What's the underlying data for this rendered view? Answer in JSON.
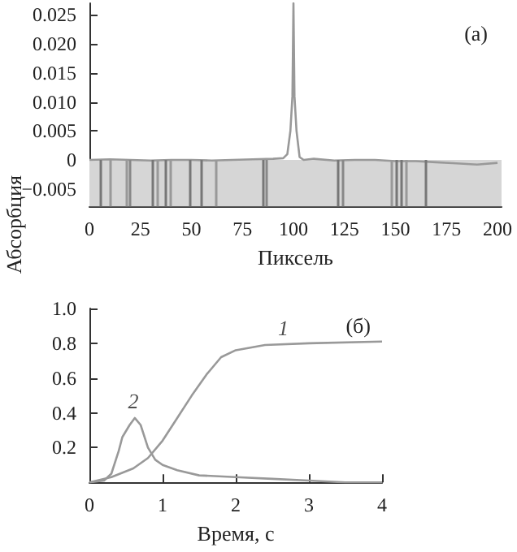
{
  "chart_data": [
    {
      "type": "line",
      "xlabel": "Пиксель",
      "bands": [
        {
          "axis": "y",
          "from": -0.008,
          "to": 0,
          "color": "#d6d6d6"
        }
      ],
      "ylabel": "Абсорбция",
      "annotations": [
        "(a)"
      ],
      "xlim": [
        0,
        202
      ],
      "ylim": [
        -0.008,
        0.027
      ],
      "xticks": [
        0,
        25,
        50,
        75,
        100,
        125,
        150,
        175,
        200
      ],
      "yticks": [
        {
          "value": -0.005,
          "label": "−0.005"
        },
        0,
        0.005,
        {
          "value": 0.01,
          "label": "0.010"
        },
        0.015,
        {
          "value": 0.02,
          "label": "0.020"
        },
        0.025
      ],
      "series": [
        {
          "color": "#999999",
          "x": [
            0,
            10,
            20,
            30,
            40,
            50,
            60,
            70,
            80,
            90,
            95,
            97,
            98.5,
            99.5,
            100,
            100.5,
            101.5,
            103,
            105,
            110,
            120,
            130,
            140,
            150,
            160,
            170,
            180,
            190,
            200
          ],
          "values": [
            0,
            0.0001,
            0,
            -0.0001,
            0,
            0,
            -0.0001,
            0,
            0.0001,
            0.0002,
            0.0003,
            0.001,
            0.005,
            0.011,
            0.027,
            0.011,
            0.005,
            0.0005,
            0,
            0.0002,
            -0.0001,
            0,
            0,
            -0.0002,
            -0.0002,
            -0.0004,
            -0.0006,
            -0.0008,
            -0.0005
          ]
        }
      ],
      "ref_lines": [
        {
          "axis": "x",
          "value": 5,
          "color": "#777777"
        },
        {
          "axis": "x",
          "value": 10,
          "color": "#999999"
        },
        {
          "axis": "x",
          "value": 18,
          "color": "#999999"
        },
        {
          "axis": "x",
          "value": 20,
          "color": "#888888"
        },
        {
          "axis": "x",
          "value": 31,
          "color": "#777777"
        },
        {
          "axis": "x",
          "value": 33,
          "color": "#999999"
        },
        {
          "axis": "x",
          "value": 37,
          "color": "#777777"
        },
        {
          "axis": "x",
          "value": 40,
          "color": "#999999"
        },
        {
          "axis": "x",
          "value": 49,
          "color": "#777777"
        },
        {
          "axis": "x",
          "value": 55,
          "color": "#777777"
        },
        {
          "axis": "x",
          "value": 62,
          "color": "#999999"
        },
        {
          "axis": "x",
          "value": 85,
          "color": "#777777"
        },
        {
          "axis": "x",
          "value": 87,
          "color": "#888888"
        },
        {
          "axis": "x",
          "value": 122,
          "color": "#777777"
        },
        {
          "axis": "x",
          "value": 124,
          "color": "#888888"
        },
        {
          "axis": "x",
          "value": 148,
          "color": "#999999"
        },
        {
          "axis": "x",
          "value": 150,
          "color": "#777777"
        },
        {
          "axis": "x",
          "value": 153,
          "color": "#777777"
        },
        {
          "axis": "x",
          "value": 155,
          "color": "#999999"
        },
        {
          "axis": "x",
          "value": 165,
          "color": "#777777"
        }
      ]
    },
    {
      "type": "line",
      "xlabel": "Время, с",
      "annotations": [
        "(б)",
        {
          "text": "1",
          "x": 2.65,
          "y": 0.79
        },
        {
          "text": "2",
          "x": 0.6,
          "y": 0.37
        }
      ],
      "xlim": [
        0,
        4
      ],
      "ylim": [
        0,
        1
      ],
      "xticks": [
        0,
        1,
        2,
        3,
        4
      ],
      "yticks": [
        0.2,
        0.4,
        0.6,
        0.8,
        {
          "value": 1,
          "label": "1.0"
        }
      ],
      "series": [
        {
          "color": "#999999",
          "x": [
            0,
            0.3,
            0.6,
            0.8,
            1,
            1.2,
            1.4,
            1.6,
            1.8,
            2,
            2.4,
            3,
            4
          ],
          "values": [
            0,
            0.03,
            0.08,
            0.14,
            0.24,
            0.37,
            0.5,
            0.62,
            0.72,
            0.76,
            0.79,
            0.8,
            0.81
          ]
        },
        {
          "color": "#999999",
          "x": [
            0,
            0.2,
            0.3,
            0.4,
            0.45,
            0.55,
            0.62,
            0.7,
            0.8,
            0.9,
            1,
            1.2,
            1.5,
            2,
            2.5,
            3,
            3.5,
            4
          ],
          "values": [
            0,
            0.01,
            0.05,
            0.18,
            0.26,
            0.33,
            0.37,
            0.33,
            0.2,
            0.13,
            0.1,
            0.07,
            0.04,
            0.03,
            0.02,
            0.01,
            0,
            0
          ]
        }
      ]
    }
  ]
}
